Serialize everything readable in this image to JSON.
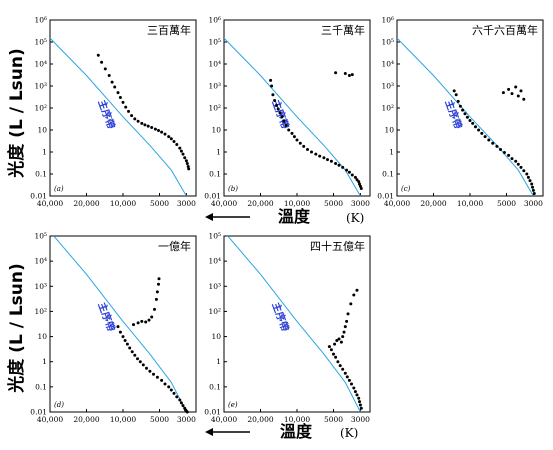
{
  "y_axis_label": "光度 (L / Lsun)",
  "x_axis_label": "溫度",
  "x_axis_unit": "(K)",
  "main_sequence_label": "主序帶",
  "colors": {
    "main_sequence": "#2aa7e0",
    "label": "#2b3fd6",
    "points": "#000000"
  },
  "chart_data": [
    {
      "type": "scatter",
      "panel_label": "(a)",
      "title": "三百萬年",
      "x_scale": "log-reversed",
      "y_scale": "log",
      "xlim": [
        40000,
        2500
      ],
      "ylim": [
        0.01,
        1000000
      ],
      "x_tick_labels": [
        "40,000",
        "20,000",
        "10,000",
        "5000",
        "3000"
      ],
      "x_ticks": [
        40000,
        20000,
        10000,
        5000,
        3000
      ],
      "y_tick_labels": [
        "10⁶",
        "10⁵",
        "10⁴",
        "10³",
        "10²",
        "10",
        "1",
        "0.1",
        "0.01"
      ],
      "y_ticks": [
        1000000,
        100000,
        10000,
        1000,
        100,
        10,
        1,
        0.1,
        0.01
      ],
      "main_sequence": {
        "x": [
          40000,
          20000,
          10000,
          6000,
          4000,
          3000
        ],
        "y": [
          150000,
          3000,
          40,
          2,
          0.15,
          0.01
        ]
      },
      "points": {
        "x": [
          16000,
          15000,
          14000,
          13000,
          12300,
          11700,
          11000,
          10500,
          10000,
          9500,
          9000,
          8500,
          8000,
          7500,
          7000,
          6600,
          6200,
          5800,
          5400,
          5100,
          4800,
          4500,
          4200,
          4000,
          3800,
          3600,
          3400,
          3300,
          3200,
          3100,
          3000,
          2950,
          2900,
          2870
        ],
        "y": [
          25000,
          12000,
          6000,
          3000,
          1500,
          900,
          500,
          300,
          180,
          110,
          70,
          45,
          32,
          25,
          20,
          17,
          15,
          13,
          11,
          9.5,
          8,
          6.5,
          5,
          4,
          3,
          2.2,
          1.5,
          1.1,
          0.8,
          0.55,
          0.4,
          0.3,
          0.22,
          0.17
        ]
      }
    },
    {
      "type": "scatter",
      "panel_label": "(b)",
      "title": "三千萬年",
      "x_scale": "log-reversed",
      "y_scale": "log",
      "xlim": [
        40000,
        2500
      ],
      "ylim": [
        0.01,
        1000000
      ],
      "x_tick_labels": [
        "40,000",
        "20,000",
        "10,000",
        "5000",
        "3000"
      ],
      "x_ticks": [
        40000,
        20000,
        10000,
        5000,
        3000
      ],
      "y_tick_labels": [
        "10⁶",
        "10⁵",
        "10⁴",
        "10³",
        "10²",
        "10",
        "1",
        "0.1",
        "0.01"
      ],
      "y_ticks": [
        1000000,
        100000,
        10000,
        1000,
        100,
        10,
        1,
        0.1,
        0.01
      ],
      "main_sequence": {
        "x": [
          40000,
          20000,
          10000,
          6000,
          4000,
          3000
        ],
        "y": [
          150000,
          3000,
          40,
          2,
          0.15,
          0.01
        ]
      },
      "points": {
        "x": [
          16500,
          16200,
          15800,
          15300,
          14800,
          14300,
          13800,
          13300,
          12800,
          12300,
          11700,
          11000,
          10500,
          10000,
          9400,
          8800,
          8200,
          7600,
          7000,
          6500,
          6000,
          5600,
          5200,
          4800,
          4500,
          4200,
          3900,
          3700,
          3500,
          3300,
          3200,
          3100,
          3050,
          3000,
          2950,
          4800,
          4000,
          3700,
          3500
        ],
        "y": [
          1800,
          1000,
          400,
          220,
          130,
          90,
          60,
          40,
          25,
          16,
          10,
          7,
          5,
          3.5,
          2.5,
          1.8,
          1.3,
          1,
          0.8,
          0.65,
          0.55,
          0.45,
          0.38,
          0.3,
          0.25,
          0.2,
          0.15,
          0.12,
          0.09,
          0.07,
          0.055,
          0.045,
          0.035,
          0.028,
          0.022,
          4000,
          3700,
          3000,
          3300
        ]
      }
    },
    {
      "type": "scatter",
      "panel_label": "(c)",
      "title": "六千六百萬年",
      "x_scale": "log-reversed",
      "y_scale": "log",
      "xlim": [
        40000,
        2500
      ],
      "ylim": [
        0.01,
        1000000
      ],
      "x_tick_labels": [
        "40,000",
        "20,000",
        "10,000",
        "5000",
        "3000"
      ],
      "x_ticks": [
        40000,
        20000,
        10000,
        5000,
        3000
      ],
      "y_tick_labels": [
        "10⁶",
        "10⁵",
        "10⁴",
        "10³",
        "10²",
        "10",
        "1",
        "0.1",
        "0.01"
      ],
      "y_ticks": [
        1000000,
        100000,
        10000,
        1000,
        100,
        10,
        1,
        0.1,
        0.01
      ],
      "main_sequence": {
        "x": [
          40000,
          20000,
          10000,
          6000,
          4000,
          3000
        ],
        "y": [
          150000,
          3000,
          40,
          2,
          0.15,
          0.01
        ]
      },
      "points": {
        "x": [
          13500,
          13000,
          12500,
          12000,
          11500,
          11000,
          10500,
          10000,
          9500,
          9000,
          8500,
          8000,
          7500,
          7000,
          6500,
          6000,
          5600,
          5200,
          4800,
          4500,
          4200,
          4000,
          3800,
          3600,
          3400,
          3300,
          3200,
          3100,
          3050,
          3000,
          2950,
          5300,
          4800,
          4500,
          4200,
          4000,
          3800,
          3600
        ],
        "y": [
          600,
          400,
          200,
          120,
          80,
          55,
          38,
          27,
          20,
          14,
          10,
          7,
          5,
          3.5,
          2.5,
          1.8,
          1.3,
          0.95,
          0.7,
          0.5,
          0.38,
          0.28,
          0.2,
          0.14,
          0.1,
          0.07,
          0.05,
          0.035,
          0.025,
          0.018,
          0.013,
          500,
          700,
          450,
          900,
          350,
          600,
          250
        ]
      }
    },
    {
      "type": "scatter",
      "panel_label": "(d)",
      "title": "一億年",
      "x_scale": "log-reversed",
      "y_scale": "log",
      "xlim": [
        40000,
        2500
      ],
      "ylim": [
        0.01,
        100000
      ],
      "x_tick_labels": [
        "40,000",
        "20,000",
        "10,000",
        "5000",
        "3000"
      ],
      "x_ticks": [
        40000,
        20000,
        10000,
        5000,
        3000
      ],
      "y_tick_labels": [
        "10⁵",
        "10⁴",
        "10³",
        "10²",
        "10",
        "1",
        "0.1",
        "0.01"
      ],
      "y_ticks": [
        100000,
        10000,
        1000,
        100,
        10,
        1,
        0.1,
        0.01
      ],
      "main_sequence": {
        "x": [
          40000,
          20000,
          10000,
          6000,
          4000,
          3000
        ],
        "y": [
          150000,
          3000,
          40,
          2,
          0.15,
          0.01
        ]
      },
      "points": {
        "x": [
          11000,
          10500,
          10000,
          9600,
          9200,
          8800,
          8400,
          8000,
          7600,
          7200,
          6800,
          6400,
          6000,
          5600,
          5200,
          4800,
          4500,
          4200,
          4000,
          3800,
          3600,
          3400,
          3300,
          3200,
          3100,
          3050,
          3000,
          2950,
          8200,
          7500,
          7000,
          6500,
          6100,
          5800,
          5500,
          5300,
          5200,
          5100,
          5050
        ],
        "y": [
          25,
          15,
          10,
          7,
          5,
          3.5,
          2.5,
          1.8,
          1.3,
          1,
          0.75,
          0.55,
          0.42,
          0.32,
          0.24,
          0.18,
          0.13,
          0.1,
          0.075,
          0.055,
          0.04,
          0.03,
          0.023,
          0.018,
          0.014,
          0.012,
          0.011,
          0.01,
          30,
          35,
          40,
          38,
          45,
          60,
          120,
          300,
          600,
          1200,
          2000
        ]
      }
    },
    {
      "type": "scatter",
      "panel_label": "(e)",
      "title": "四十五億年",
      "x_scale": "log-reversed",
      "y_scale": "log",
      "xlim": [
        40000,
        2500
      ],
      "ylim": [
        0.01,
        100000
      ],
      "x_tick_labels": [
        "40,000",
        "20,000",
        "10,000",
        "5000",
        "3000"
      ],
      "x_ticks": [
        40000,
        20000,
        10000,
        5000,
        3000
      ],
      "y_tick_labels": [
        "10⁵",
        "10⁴",
        "10³",
        "10²",
        "10",
        "1",
        "0.1",
        "0.01"
      ],
      "y_ticks": [
        100000,
        10000,
        1000,
        100,
        10,
        1,
        0.1,
        0.01
      ],
      "main_sequence": {
        "x": [
          40000,
          20000,
          10000,
          6000,
          4000,
          3000
        ],
        "y": [
          150000,
          3000,
          40,
          2,
          0.15,
          0.01
        ]
      },
      "points": {
        "x": [
          5400,
          5200,
          5000,
          4800,
          4600,
          4400,
          4200,
          4000,
          3850,
          3700,
          3550,
          3400,
          3300,
          3200,
          3100,
          3050,
          3000,
          2950,
          4900,
          4700,
          4500,
          4300,
          4200,
          4100,
          4000,
          3900,
          3800,
          3600,
          3400,
          3200
        ],
        "y": [
          4,
          3,
          2,
          1.5,
          1,
          0.7,
          0.5,
          0.35,
          0.25,
          0.18,
          0.13,
          0.09,
          0.065,
          0.048,
          0.035,
          0.026,
          0.019,
          0.014,
          5,
          7,
          8,
          6,
          10,
          15,
          25,
          40,
          80,
          200,
          450,
          700
        ]
      }
    }
  ]
}
